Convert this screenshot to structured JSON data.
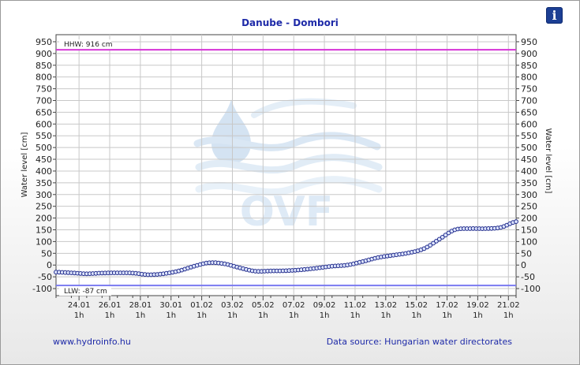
{
  "header": {
    "title": "Danube - Dombori",
    "info_icon": "info-icon",
    "info_glyph": "i"
  },
  "footer": {
    "link_text": "www.hydroinfo.hu",
    "source_text": "Data source: Hungarian water directorates"
  },
  "watermark": {
    "text": "OVF"
  },
  "chart_data": {
    "type": "line",
    "title": "Danube - Dombori",
    "ylabel": "Water level [cm]",
    "ylabel_right": "Water level [cm]",
    "ylim": [
      -130,
      980
    ],
    "yticks": [
      -100,
      -50,
      0,
      50,
      100,
      150,
      200,
      250,
      300,
      350,
      400,
      450,
      500,
      550,
      600,
      650,
      700,
      750,
      800,
      850,
      900,
      950
    ],
    "xlim_days": [
      0,
      30
    ],
    "xticks": [
      {
        "day": 1.5,
        "date": "24.01",
        "time": "1h"
      },
      {
        "day": 3.5,
        "date": "26.01",
        "time": "1h"
      },
      {
        "day": 5.5,
        "date": "28.01",
        "time": "1h"
      },
      {
        "day": 7.5,
        "date": "30.01",
        "time": "1h"
      },
      {
        "day": 9.5,
        "date": "01.02",
        "time": "1h"
      },
      {
        "day": 11.5,
        "date": "03.02",
        "time": "1h"
      },
      {
        "day": 13.5,
        "date": "05.02",
        "time": "1h"
      },
      {
        "day": 15.5,
        "date": "07.02",
        "time": "1h"
      },
      {
        "day": 17.5,
        "date": "09.02",
        "time": "1h"
      },
      {
        "day": 19.5,
        "date": "11.02",
        "time": "1h"
      },
      {
        "day": 21.5,
        "date": "13.02",
        "time": "1h"
      },
      {
        "day": 23.5,
        "date": "15.02",
        "time": "1h"
      },
      {
        "day": 25.5,
        "date": "17.02",
        "time": "1h"
      },
      {
        "day": 27.5,
        "date": "19.02",
        "time": "1h"
      },
      {
        "day": 29.5,
        "date": "21.02",
        "time": "1h"
      }
    ],
    "reference_lines": [
      {
        "name": "HHW",
        "label": "HHW: 916 cm",
        "value": 916,
        "color": "#d633d6"
      },
      {
        "name": "LLW",
        "label": "LLW: -87 cm",
        "value": -87,
        "color": "#7a7af0"
      }
    ],
    "series": [
      {
        "color": "#1f2a8a",
        "points": [
          [
            0,
            -30
          ],
          [
            1,
            -33
          ],
          [
            2,
            -37
          ],
          [
            3,
            -34
          ],
          [
            4,
            -33
          ],
          [
            5,
            -34
          ],
          [
            6,
            -41
          ],
          [
            7,
            -37
          ],
          [
            8,
            -25
          ],
          [
            9,
            -5
          ],
          [
            10,
            10
          ],
          [
            11,
            5
          ],
          [
            12,
            -12
          ],
          [
            13,
            -26
          ],
          [
            14,
            -25
          ],
          [
            15,
            -24
          ],
          [
            16,
            -20
          ],
          [
            17,
            -13
          ],
          [
            18,
            -5
          ],
          [
            19,
            0
          ],
          [
            20,
            15
          ],
          [
            21,
            32
          ],
          [
            22,
            42
          ],
          [
            23,
            52
          ],
          [
            24,
            70
          ],
          [
            25,
            110
          ],
          [
            26,
            150
          ],
          [
            27,
            155
          ],
          [
            28,
            155
          ],
          [
            29,
            160
          ],
          [
            30,
            185
          ]
        ]
      }
    ],
    "grid": true,
    "legend": "none"
  }
}
